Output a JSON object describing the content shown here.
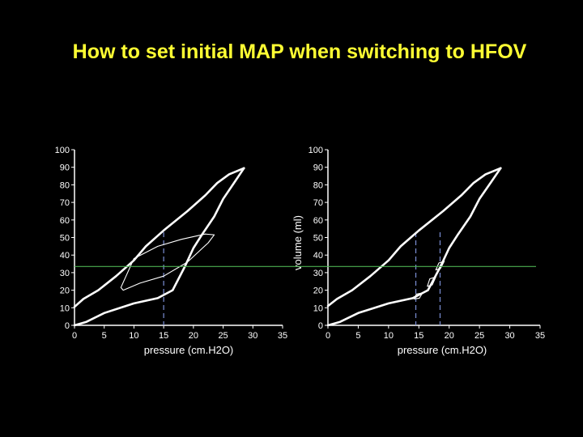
{
  "title": "How to set initial MAP when switching to HFOV",
  "colors": {
    "background": "#000000",
    "title": "#ffff33",
    "curves": "#ffffff",
    "reference_line": "#4caf50",
    "map_markers": "#7b8fd4"
  },
  "chart_data": [
    {
      "type": "line",
      "xlabel": "pressure (cm.H2O)",
      "ylabel": "",
      "xlim": [
        0,
        35
      ],
      "ylim": [
        0,
        100
      ],
      "xticks": [
        0,
        5,
        10,
        15,
        20,
        25,
        30,
        35
      ],
      "yticks": [
        0,
        10,
        20,
        30,
        40,
        50,
        60,
        70,
        80,
        90,
        100
      ],
      "grid": false,
      "series": [
        {
          "role": "inflation-limb",
          "style": "thick",
          "x": [
            0,
            1.5,
            4,
            7,
            10,
            12,
            15,
            19,
            22,
            24,
            26,
            28.5
          ],
          "y": [
            10.5,
            15,
            20,
            28,
            37,
            45,
            54,
            65,
            74,
            81,
            86,
            89.5
          ]
        },
        {
          "role": "deflation-limb",
          "style": "thick",
          "x": [
            28.5,
            27,
            25,
            23.5,
            21.5,
            20,
            18.5,
            16.5,
            14,
            10,
            5,
            2,
            0
          ],
          "y": [
            89.5,
            82,
            72,
            62,
            52,
            44,
            33,
            20,
            15.5,
            12.5,
            7,
            2,
            0
          ]
        },
        {
          "role": "hfov-loop",
          "style": "thin",
          "x": [
            23.5,
            22,
            18,
            14,
            10,
            7.8,
            8.2,
            11,
            15,
            19,
            22.5,
            23.5
          ],
          "y": [
            51.5,
            52,
            49,
            45,
            38,
            21.5,
            20,
            24,
            28,
            36,
            47,
            51.5
          ]
        }
      ],
      "reference_lines": [
        {
          "orientation": "horizontal",
          "value": 33.5
        },
        {
          "orientation": "vertical",
          "value": 15,
          "style": "dashed"
        }
      ]
    },
    {
      "type": "line",
      "xlabel": "pressure (cm.H2O)",
      "ylabel": "volume (ml)",
      "xlim": [
        0,
        35
      ],
      "ylim": [
        0,
        100
      ],
      "xticks": [
        0,
        5,
        10,
        15,
        20,
        25,
        30,
        35
      ],
      "yticks": [
        0,
        10,
        20,
        30,
        40,
        50,
        60,
        70,
        80,
        90,
        100
      ],
      "grid": false,
      "series": [
        {
          "role": "inflation-limb",
          "style": "thick",
          "x": [
            0,
            1.5,
            4,
            7,
            10,
            12,
            15,
            19,
            22,
            24,
            26,
            28.5
          ],
          "y": [
            11,
            15,
            20,
            28,
            37,
            45,
            54,
            65,
            74,
            81,
            86,
            89.5
          ]
        },
        {
          "role": "deflation-limb",
          "style": "thick",
          "x": [
            28.5,
            27,
            25,
            23.5,
            21.5,
            20,
            18.5,
            16.5,
            14,
            10,
            5,
            2,
            0
          ],
          "y": [
            89.5,
            82,
            72,
            62,
            52,
            44,
            33,
            20,
            15.5,
            12.5,
            7,
            2,
            0
          ]
        },
        {
          "role": "small-loop-1",
          "style": "thin",
          "x": [
            15.6,
            14.6,
            14.2,
            15.1,
            15.6
          ],
          "y": [
            18.5,
            17.8,
            15,
            15.5,
            18.5
          ]
        },
        {
          "role": "small-loop-2",
          "style": "thin",
          "x": [
            17.8,
            16.8,
            16.4,
            17.2,
            17.8
          ],
          "y": [
            27.5,
            26.5,
            22.2,
            23,
            27.5
          ]
        },
        {
          "role": "small-loop-3",
          "style": "thin",
          "x": [
            19.2,
            18.3,
            17.8,
            18.6,
            19.2
          ],
          "y": [
            36.5,
            35.5,
            31.5,
            32.5,
            36.5
          ]
        }
      ],
      "reference_lines": [
        {
          "orientation": "horizontal",
          "value": 33.5
        },
        {
          "orientation": "vertical",
          "value": 14.5,
          "style": "dashed"
        },
        {
          "orientation": "vertical",
          "value": 18.5,
          "style": "dashed"
        }
      ]
    }
  ]
}
